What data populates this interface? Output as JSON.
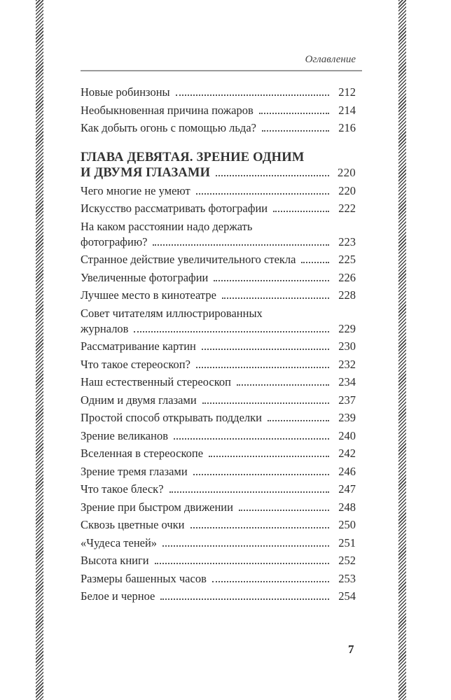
{
  "running_head": "Оглавление",
  "entries_before": [
    {
      "title_lines": [
        "Новые робинзоны"
      ],
      "page": "212"
    },
    {
      "title_lines": [
        "Необыкновенная причина пожаров"
      ],
      "page": "214"
    },
    {
      "title_lines": [
        "Как добыть огонь с помощью льда?"
      ],
      "page": "216"
    }
  ],
  "chapter": {
    "title_lines": [
      "ГЛАВА ДЕВЯТАЯ. ЗРЕНИЕ ОДНИМ",
      "И ДВУМЯ ГЛАЗАМИ"
    ],
    "page": "220"
  },
  "entries": [
    {
      "title_lines": [
        "Чего многие не умеют"
      ],
      "page": "220"
    },
    {
      "title_lines": [
        "Искусство рассматривать фотографии"
      ],
      "page": "222"
    },
    {
      "title_lines": [
        "На каком расстоянии надо держать",
        "фотографию?"
      ],
      "page": "223"
    },
    {
      "title_lines": [
        "Странное действие увеличительного стекла"
      ],
      "page": "225"
    },
    {
      "title_lines": [
        "Увеличенные фотографии"
      ],
      "page": "226"
    },
    {
      "title_lines": [
        "Лучшее место в кинотеатре"
      ],
      "page": "228"
    },
    {
      "title_lines": [
        "Совет читателям иллюстрированных",
        "журналов"
      ],
      "page": "229"
    },
    {
      "title_lines": [
        "Рассматривание картин"
      ],
      "page": "230"
    },
    {
      "title_lines": [
        "Что такое стереоскоп?"
      ],
      "page": "232"
    },
    {
      "title_lines": [
        "Наш естественный стереоскоп"
      ],
      "page": "234"
    },
    {
      "title_lines": [
        "Одним и двумя глазами"
      ],
      "page": "237"
    },
    {
      "title_lines": [
        "Простой способ открывать подделки"
      ],
      "page": "239"
    },
    {
      "title_lines": [
        "Зрение великанов"
      ],
      "page": "240"
    },
    {
      "title_lines": [
        "Вселенная в стереоскопе"
      ],
      "page": "242"
    },
    {
      "title_lines": [
        "Зрение тремя глазами"
      ],
      "page": "246"
    },
    {
      "title_lines": [
        "Что такое блеск?"
      ],
      "page": "247"
    },
    {
      "title_lines": [
        "Зрение при быстром движении"
      ],
      "page": "248"
    },
    {
      "title_lines": [
        "Сквозь цветные очки"
      ],
      "page": "250"
    },
    {
      "title_lines": [
        "«Чудеса теней»"
      ],
      "page": "251"
    },
    {
      "title_lines": [
        "Высота книги"
      ],
      "page": "252"
    },
    {
      "title_lines": [
        "Размеры башенных часов"
      ],
      "page": "253"
    },
    {
      "title_lines": [
        "Белое и черное"
      ],
      "page": "254"
    }
  ],
  "page_number": "7"
}
